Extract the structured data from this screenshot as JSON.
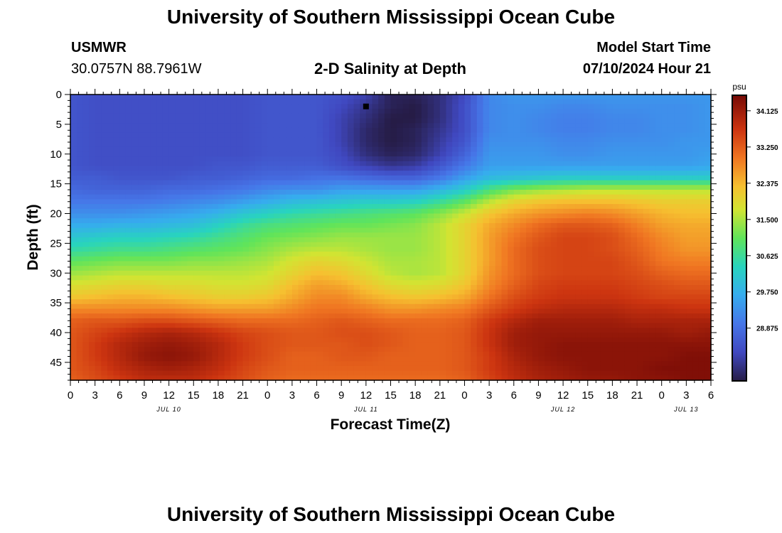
{
  "page": {
    "title": "University of Southern Mississippi Ocean Cube",
    "footer_title": "University of Southern Mississippi Ocean Cube",
    "station": {
      "name": "USMWR",
      "coords": "30.0757N  88.7961W"
    },
    "subtitle": "2-D Salinity at Depth",
    "model_start": {
      "label": "Model Start Time",
      "value": "07/10/2024 Hour 21"
    }
  },
  "chart_data": {
    "type": "heatmap",
    "title": "2-D Salinity at Depth",
    "xlabel": "Forecast Time(Z)",
    "ylabel": "Depth (ft)",
    "x_unit": "forecast hour",
    "xlim": [
      0,
      78
    ],
    "ylim": [
      0,
      48
    ],
    "x_ticks": [
      0,
      3,
      6,
      9,
      12,
      15,
      18,
      21,
      24,
      27,
      30,
      33,
      36,
      39,
      42,
      45,
      48,
      51,
      54,
      57,
      60,
      63,
      66,
      69,
      72,
      75,
      78
    ],
    "x_tick_labels": [
      "0",
      "3",
      "6",
      "9",
      "12",
      "15",
      "18",
      "21",
      "0",
      "3",
      "6",
      "9",
      "12",
      "15",
      "18",
      "21",
      "0",
      "3",
      "6",
      "9",
      "12",
      "15",
      "18",
      "21",
      "0",
      "3",
      "6"
    ],
    "day_labels": [
      {
        "hour": 12,
        "text": "JUL 10"
      },
      {
        "hour": 36,
        "text": "JUL 11"
      },
      {
        "hour": 60,
        "text": "JUL 12"
      },
      {
        "hour": 75,
        "text": "JUL 13"
      }
    ],
    "y_ticks": [
      0,
      5,
      10,
      15,
      20,
      25,
      30,
      35,
      40,
      45
    ],
    "y_tick_labels": [
      "0",
      "5",
      "10",
      "15",
      "20",
      "25",
      "30",
      "35",
      "40",
      "45"
    ],
    "colorbar": {
      "unit": "psu",
      "min": 27.6,
      "max": 34.5,
      "ticks": [
        34.125,
        33.25,
        32.375,
        31.5,
        30.625,
        29.75,
        28.875
      ],
      "tick_labels": [
        "34.125",
        "33.250",
        "32.375",
        "31.500",
        "30.625",
        "29.750",
        "28.875"
      ]
    },
    "marker": {
      "hour": 36,
      "depth": 2
    },
    "depths": [
      0,
      2,
      4,
      6,
      8,
      10,
      12,
      14,
      16,
      18,
      20,
      22,
      24,
      26,
      28,
      30,
      32,
      34,
      36,
      38,
      40,
      42,
      44,
      46,
      48
    ],
    "hours": [
      0,
      3,
      6,
      9,
      12,
      15,
      18,
      21,
      24,
      27,
      30,
      33,
      36,
      39,
      42,
      45,
      48,
      51,
      54,
      57,
      60,
      63,
      66,
      69,
      72,
      75,
      78
    ],
    "values": [
      [
        28.5,
        28.4,
        28.4,
        28.4,
        28.4,
        28.4,
        28.4,
        28.4,
        28.5,
        28.5,
        28.5,
        28.4,
        28.2,
        27.7,
        27.7,
        27.9,
        28.3,
        29.2,
        29.4,
        29.4,
        29.4,
        29.4,
        29.4,
        29.4,
        29.4,
        29.4,
        29.4
      ],
      [
        28.5,
        28.4,
        28.4,
        28.4,
        28.4,
        28.4,
        28.4,
        28.4,
        28.5,
        28.5,
        28.5,
        28.3,
        28.0,
        27.7,
        27.6,
        27.9,
        28.4,
        29.2,
        29.3,
        29.3,
        29.2,
        29.2,
        29.3,
        29.3,
        29.3,
        29.3,
        29.4
      ],
      [
        28.5,
        28.4,
        28.4,
        28.4,
        28.4,
        28.4,
        28.4,
        28.4,
        28.5,
        28.5,
        28.5,
        28.2,
        27.9,
        27.6,
        27.6,
        27.9,
        28.4,
        29.2,
        29.3,
        29.2,
        29.1,
        29.1,
        29.2,
        29.2,
        29.3,
        29.3,
        29.4
      ],
      [
        28.5,
        28.4,
        28.4,
        28.4,
        28.4,
        28.4,
        28.4,
        28.4,
        28.5,
        28.5,
        28.5,
        28.2,
        27.8,
        27.6,
        27.7,
        28.0,
        28.4,
        29.2,
        29.3,
        29.2,
        29.1,
        29.1,
        29.2,
        29.2,
        29.3,
        29.3,
        29.4
      ],
      [
        28.5,
        28.4,
        28.4,
        28.4,
        28.4,
        28.4,
        28.4,
        28.4,
        28.5,
        28.5,
        28.5,
        28.2,
        27.8,
        27.6,
        27.7,
        28.1,
        28.5,
        29.3,
        29.3,
        29.3,
        29.2,
        29.2,
        29.3,
        29.3,
        29.3,
        29.4,
        29.4
      ],
      [
        28.5,
        28.4,
        28.4,
        28.4,
        28.4,
        28.4,
        28.4,
        28.4,
        28.5,
        28.5,
        28.5,
        28.3,
        27.9,
        27.7,
        27.8,
        28.2,
        28.7,
        29.4,
        29.4,
        29.4,
        29.3,
        29.3,
        29.4,
        29.4,
        29.4,
        29.4,
        29.5
      ],
      [
        28.5,
        28.4,
        28.4,
        28.4,
        28.4,
        28.4,
        28.5,
        28.5,
        28.6,
        28.6,
        28.6,
        28.4,
        28.2,
        28.0,
        28.1,
        28.5,
        29.0,
        29.5,
        29.5,
        29.5,
        29.5,
        29.5,
        29.5,
        29.5,
        29.5,
        29.5,
        29.6
      ],
      [
        28.6,
        28.6,
        28.5,
        28.5,
        28.5,
        28.6,
        28.6,
        28.7,
        28.8,
        28.8,
        28.9,
        28.9,
        28.8,
        28.7,
        28.7,
        29.0,
        29.5,
        29.9,
        30.0,
        30.1,
        30.2,
        30.2,
        30.2,
        30.2,
        30.2,
        30.2,
        30.2
      ],
      [
        28.8,
        28.7,
        28.7,
        28.7,
        28.8,
        28.8,
        28.9,
        29.0,
        29.2,
        29.3,
        29.3,
        29.5,
        29.5,
        29.5,
        29.5,
        29.8,
        30.2,
        30.8,
        31.2,
        31.4,
        31.5,
        31.6,
        31.6,
        31.6,
        31.6,
        31.6,
        31.6
      ],
      [
        29.0,
        29.0,
        29.0,
        29.0,
        29.1,
        29.2,
        29.3,
        29.5,
        29.7,
        29.9,
        30.0,
        30.1,
        30.2,
        30.2,
        30.3,
        30.6,
        31.0,
        31.6,
        32.0,
        32.2,
        32.3,
        32.3,
        32.3,
        32.2,
        32.1,
        32.1,
        32.1
      ],
      [
        29.3,
        29.3,
        29.3,
        29.4,
        29.5,
        29.6,
        29.8,
        30.1,
        30.3,
        30.5,
        30.6,
        30.7,
        30.8,
        30.9,
        31.0,
        31.3,
        31.7,
        32.2,
        32.5,
        32.7,
        32.8,
        32.9,
        32.8,
        32.6,
        32.4,
        32.3,
        32.3
      ],
      [
        29.7,
        29.7,
        29.8,
        29.8,
        29.9,
        30.0,
        30.3,
        30.6,
        30.8,
        30.9,
        31.0,
        31.1,
        31.1,
        31.2,
        31.3,
        31.6,
        32.0,
        32.5,
        32.8,
        33.1,
        33.3,
        33.3,
        33.2,
        32.9,
        32.6,
        32.5,
        32.5
      ],
      [
        30.1,
        30.2,
        30.3,
        30.3,
        30.4,
        30.5,
        30.7,
        30.9,
        31.1,
        31.2,
        31.3,
        31.4,
        31.4,
        31.4,
        31.4,
        31.6,
        32.0,
        32.6,
        33.0,
        33.3,
        33.5,
        33.5,
        33.4,
        33.1,
        32.8,
        32.6,
        32.6
      ],
      [
        30.5,
        30.6,
        30.7,
        30.7,
        30.8,
        30.9,
        31.0,
        31.1,
        31.3,
        31.5,
        31.6,
        31.6,
        31.5,
        31.4,
        31.4,
        31.6,
        32.0,
        32.6,
        33.1,
        33.4,
        33.5,
        33.5,
        33.4,
        33.2,
        32.9,
        32.7,
        32.7
      ],
      [
        31.0,
        31.1,
        31.2,
        31.2,
        31.2,
        31.3,
        31.3,
        31.4,
        31.5,
        31.8,
        32.0,
        31.9,
        31.7,
        31.5,
        31.5,
        31.6,
        32.0,
        32.6,
        33.1,
        33.4,
        33.5,
        33.5,
        33.5,
        33.3,
        33.0,
        32.9,
        32.9
      ],
      [
        31.4,
        31.5,
        31.6,
        31.6,
        31.6,
        31.6,
        31.6,
        31.6,
        31.7,
        32.0,
        32.3,
        32.2,
        31.9,
        31.6,
        31.5,
        31.6,
        32.0,
        32.7,
        33.1,
        33.4,
        33.5,
        33.5,
        33.5,
        33.4,
        33.2,
        33.1,
        33.1
      ],
      [
        31.8,
        31.9,
        32.0,
        32.0,
        31.9,
        31.9,
        31.8,
        31.8,
        31.9,
        32.3,
        32.6,
        32.5,
        32.2,
        31.9,
        31.8,
        31.9,
        32.2,
        32.8,
        33.2,
        33.5,
        33.6,
        33.6,
        33.6,
        33.5,
        33.4,
        33.3,
        33.3
      ],
      [
        32.2,
        32.3,
        32.4,
        32.4,
        32.3,
        32.2,
        32.1,
        32.1,
        32.2,
        32.5,
        32.8,
        32.8,
        32.5,
        32.3,
        32.2,
        32.3,
        32.5,
        33.0,
        33.4,
        33.6,
        33.7,
        33.7,
        33.7,
        33.6,
        33.5,
        33.5,
        33.5
      ],
      [
        32.8,
        32.8,
        32.8,
        32.8,
        32.8,
        32.7,
        32.6,
        32.6,
        32.6,
        32.8,
        33.0,
        33.0,
        32.9,
        32.7,
        32.7,
        32.8,
        32.9,
        33.3,
        33.6,
        33.8,
        33.9,
        33.9,
        33.9,
        33.8,
        33.8,
        33.7,
        33.7
      ],
      [
        33.2,
        33.3,
        33.3,
        33.4,
        33.4,
        33.3,
        33.2,
        33.1,
        33.1,
        33.1,
        33.2,
        33.3,
        33.2,
        33.1,
        33.1,
        33.1,
        33.2,
        33.6,
        33.9,
        34.1,
        34.1,
        34.1,
        34.1,
        34.0,
        34.0,
        34.0,
        34.0
      ],
      [
        33.3,
        33.5,
        33.7,
        33.9,
        34.0,
        33.9,
        33.7,
        33.5,
        33.4,
        33.3,
        33.3,
        33.4,
        33.4,
        33.3,
        33.2,
        33.2,
        33.3,
        33.7,
        34.1,
        34.2,
        34.2,
        34.2,
        34.2,
        34.2,
        34.2,
        34.1,
        34.2
      ],
      [
        33.3,
        33.6,
        33.9,
        34.1,
        34.2,
        34.1,
        33.9,
        33.6,
        33.4,
        33.3,
        33.3,
        33.3,
        33.4,
        33.3,
        33.2,
        33.2,
        33.3,
        33.7,
        34.1,
        34.2,
        34.3,
        34.3,
        34.3,
        34.3,
        34.3,
        34.3,
        34.3
      ],
      [
        33.3,
        33.6,
        33.9,
        34.2,
        34.3,
        34.2,
        33.9,
        33.6,
        33.4,
        33.2,
        33.2,
        33.3,
        33.3,
        33.2,
        33.2,
        33.2,
        33.3,
        33.6,
        34.0,
        34.2,
        34.3,
        34.3,
        34.3,
        34.3,
        34.3,
        34.4,
        34.4
      ],
      [
        33.3,
        33.5,
        33.8,
        34.0,
        34.1,
        34.0,
        33.8,
        33.5,
        33.3,
        33.2,
        33.2,
        33.2,
        33.2,
        33.2,
        33.2,
        33.2,
        33.3,
        33.6,
        33.9,
        34.1,
        34.2,
        34.3,
        34.3,
        34.3,
        34.4,
        34.4,
        34.4
      ],
      [
        33.2,
        33.4,
        33.6,
        33.8,
        33.8,
        33.8,
        33.6,
        33.4,
        33.2,
        33.1,
        33.1,
        33.1,
        33.1,
        33.1,
        33.1,
        33.1,
        33.2,
        33.5,
        33.8,
        34.0,
        34.1,
        34.2,
        34.2,
        34.3,
        34.3,
        34.4,
        34.4
      ]
    ]
  }
}
